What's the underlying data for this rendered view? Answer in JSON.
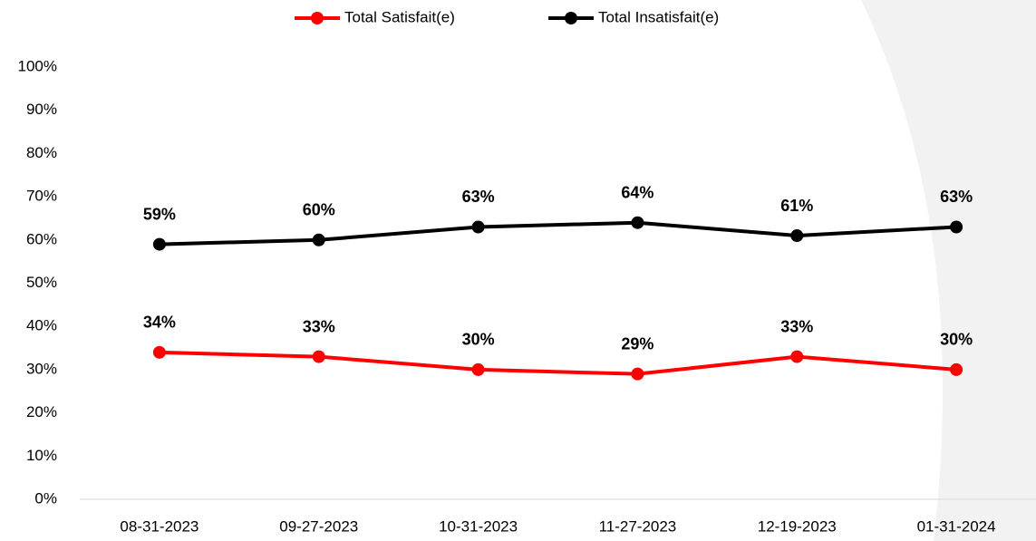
{
  "chart_data": {
    "type": "line",
    "categories": [
      "08-31-2023",
      "09-27-2023",
      "10-31-2023",
      "11-27-2023",
      "12-19-2023",
      "01-31-2024"
    ],
    "series": [
      {
        "name": "Total Satisfait(e)",
        "color": "#ff0000",
        "values": [
          34,
          33,
          30,
          29,
          33,
          30
        ],
        "value_labels": [
          "34%",
          "33%",
          "30%",
          "29%",
          "33%",
          "30%"
        ]
      },
      {
        "name": "Total Insatisfait(e)",
        "color": "#000000",
        "values": [
          59,
          60,
          63,
          64,
          61,
          63
        ],
        "value_labels": [
          "59%",
          "60%",
          "63%",
          "64%",
          "61%",
          "63%"
        ]
      }
    ],
    "ylim": [
      0,
      100
    ],
    "yticks": [
      {
        "value": 0,
        "label": "0%"
      },
      {
        "value": 10,
        "label": "10%"
      },
      {
        "value": 20,
        "label": "20%"
      },
      {
        "value": 30,
        "label": "30%"
      },
      {
        "value": 40,
        "label": "40%"
      },
      {
        "value": 50,
        "label": "50%"
      },
      {
        "value": 60,
        "label": "60%"
      },
      {
        "value": 70,
        "label": "70%"
      },
      {
        "value": 80,
        "label": "80%"
      },
      {
        "value": 90,
        "label": "90%"
      },
      {
        "value": 100,
        "label": "100%"
      }
    ],
    "grid": false,
    "legend": "top"
  }
}
